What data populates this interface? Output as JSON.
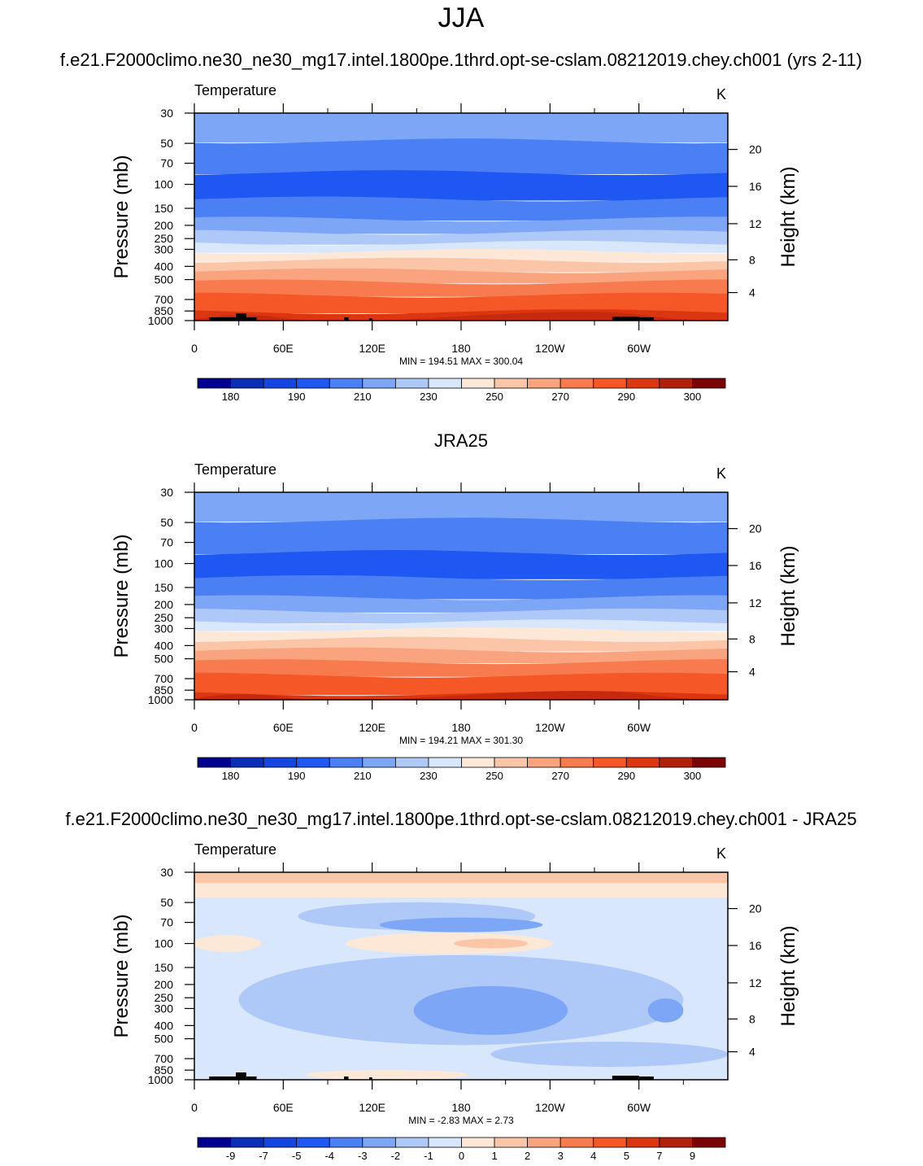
{
  "chart_data": {
    "type": "heatmap",
    "title": "JJA",
    "x_ticks": [
      "0",
      "60E",
      "120E",
      "180",
      "120W",
      "60W"
    ],
    "y_ticks": [
      "30",
      "50",
      "70",
      "100",
      "150",
      "200",
      "250",
      "300",
      "400",
      "500",
      "700",
      "850",
      "1000"
    ],
    "y2_ticks": [
      "20",
      "16",
      "12",
      "8",
      "4"
    ],
    "ylabel": "Pressure (mb)",
    "y2label": "Height (km)",
    "panels": [
      {
        "title": "f.e21.F2000climo.ne30_ne30_mg17.intel.1800pe.1thrd.opt-se-cslam.08212019.chey.ch001 (yrs 2-11)",
        "variable": "Temperature",
        "units": "K",
        "stats": "MIN = 194.51  MAX = 300.04",
        "colorbar_labels": [
          "180",
          "190",
          "210",
          "230",
          "250",
          "270",
          "290",
          "300"
        ],
        "bands": [
          {
            "p_top": 30,
            "p_bottom": 48,
            "color": "#7ea6f6"
          },
          {
            "p_top": 48,
            "p_bottom": 82,
            "color": "#4b7ff4"
          },
          {
            "p_top": 82,
            "p_bottom": 128,
            "color": "#1f57f2"
          },
          {
            "p_top": 128,
            "p_bottom": 180,
            "color": "#4b7ff4"
          },
          {
            "p_top": 180,
            "p_bottom": 225,
            "color": "#7ea6f6"
          },
          {
            "p_top": 225,
            "p_bottom": 270,
            "color": "#aec8f8"
          },
          {
            "p_top": 270,
            "p_bottom": 310,
            "color": "#d8e7fb"
          },
          {
            "p_top": 310,
            "p_bottom": 360,
            "color": "#fde8d8"
          },
          {
            "p_top": 360,
            "p_bottom": 430,
            "color": "#fbc6a8"
          },
          {
            "p_top": 430,
            "p_bottom": 520,
            "color": "#f9a47e"
          },
          {
            "p_top": 520,
            "p_bottom": 650,
            "color": "#f77b4e"
          },
          {
            "p_top": 650,
            "p_bottom": 860,
            "color": "#f65726"
          },
          {
            "p_top": 860,
            "p_bottom": 1000,
            "color": "#dc3611"
          }
        ]
      },
      {
        "title": "JRA25",
        "variable": "Temperature",
        "units": "K",
        "stats": "MIN = 194.21  MAX = 301.30",
        "colorbar_labels": [
          "180",
          "190",
          "210",
          "230",
          "250",
          "270",
          "290",
          "300"
        ],
        "bands": [
          {
            "p_top": 30,
            "p_bottom": 48,
            "color": "#7ea6f6"
          },
          {
            "p_top": 48,
            "p_bottom": 83,
            "color": "#4b7ff4"
          },
          {
            "p_top": 83,
            "p_bottom": 127,
            "color": "#1f57f2"
          },
          {
            "p_top": 127,
            "p_bottom": 178,
            "color": "#4b7ff4"
          },
          {
            "p_top": 178,
            "p_bottom": 223,
            "color": "#7ea6f6"
          },
          {
            "p_top": 223,
            "p_bottom": 268,
            "color": "#aec8f8"
          },
          {
            "p_top": 268,
            "p_bottom": 305,
            "color": "#d8e7fb"
          },
          {
            "p_top": 305,
            "p_bottom": 360,
            "color": "#fde8d8"
          },
          {
            "p_top": 360,
            "p_bottom": 430,
            "color": "#fbc6a8"
          },
          {
            "p_top": 430,
            "p_bottom": 525,
            "color": "#f9a47e"
          },
          {
            "p_top": 525,
            "p_bottom": 660,
            "color": "#f77b4e"
          },
          {
            "p_top": 660,
            "p_bottom": 900,
            "color": "#f65726"
          },
          {
            "p_top": 900,
            "p_bottom": 1000,
            "color": "#dc3611"
          }
        ]
      },
      {
        "title": "f.e21.F2000climo.ne30_ne30_mg17.intel.1800pe.1thrd.opt-se-cslam.08212019.chey.ch001 - JRA25",
        "variable": "Temperature",
        "units": "K",
        "stats": "MIN =  -2.83  MAX =   2.73",
        "colorbar_labels": [
          "-9",
          "-7",
          "-5",
          "-4",
          "-3",
          "-2",
          "-1",
          "0",
          "1",
          "2",
          "3",
          "4",
          "5",
          "7",
          "9"
        ],
        "bands": [
          {
            "p_top": 30,
            "p_bottom": 36,
            "color": "#fbc6a8"
          },
          {
            "p_top": 36,
            "p_bottom": 46,
            "color": "#fde8d8"
          },
          {
            "p_top": 46,
            "p_bottom": 1000,
            "color": "#d8e7fb"
          }
        ],
        "blobs": [
          {
            "lon": 150,
            "p": 63,
            "dlon": 160,
            "dp": 12,
            "color": "#aec8f8"
          },
          {
            "lon": 180,
            "p": 73,
            "dlon": 110,
            "dp": 6,
            "color": "#7ea6f6"
          },
          {
            "lon": 22,
            "p": 100,
            "dlon": 46,
            "dp": 10,
            "color": "#fde8d8"
          },
          {
            "lon": 172,
            "p": 100,
            "dlon": 140,
            "dp": 14,
            "color": "#fde8d8"
          },
          {
            "lon": 200,
            "p": 100,
            "dlon": 50,
            "dp": 4,
            "color": "#fbc6a8"
          },
          {
            "lon": 180,
            "p": 260,
            "dlon": 300,
            "dp": 160,
            "color": "#aec8f8"
          },
          {
            "lon": 200,
            "p": 310,
            "dlon": 104,
            "dp": 110,
            "color": "#7ea6f6"
          },
          {
            "lon": 318,
            "p": 310,
            "dlon": 24,
            "dp": 50,
            "color": "#7ea6f6"
          },
          {
            "lon": 280,
            "p": 650,
            "dlon": 160,
            "dp": 110,
            "color": "#aec8f8"
          },
          {
            "lon": 130,
            "p": 920,
            "dlon": 110,
            "dp": 40,
            "color": "#fde8d8"
          }
        ]
      }
    ],
    "colorbar_colors": [
      "#000090",
      "#0a2fb6",
      "#1545e0",
      "#1f57f2",
      "#4b7ff4",
      "#7ea6f6",
      "#aec8f8",
      "#d8e7fb",
      "#fde8d8",
      "#fbc6a8",
      "#f9a47e",
      "#f77b4e",
      "#f65726",
      "#dc3611",
      "#b0200a",
      "#7a0404"
    ]
  }
}
